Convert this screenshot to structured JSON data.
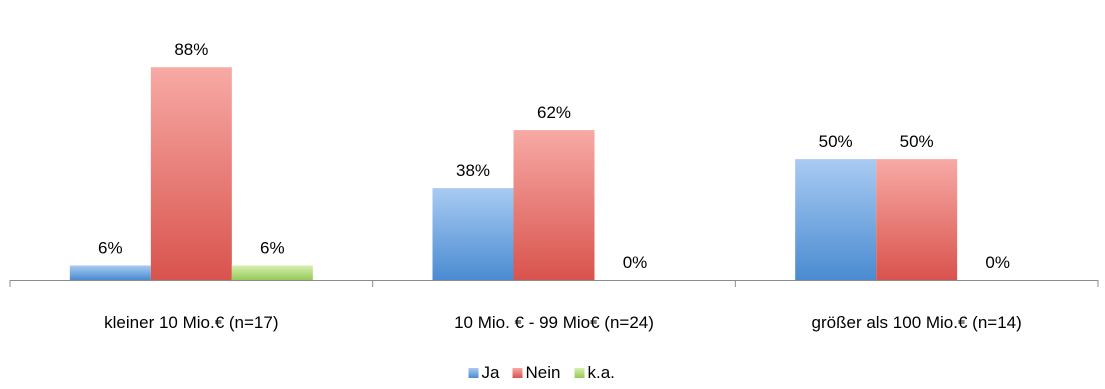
{
  "chart_data": {
    "type": "bar",
    "categories": [
      "kleiner 10 Mio.€ (n=17)",
      "10 Mio. € - 99 Mio€ (n=24)",
      "größer als 100 Mio.€ (n=14)"
    ],
    "series": [
      {
        "name": "Ja",
        "values": [
          6,
          38,
          50
        ],
        "labels": [
          "6%",
          "38%",
          "50%"
        ],
        "color": "#5b9bd5"
      },
      {
        "name": "Nein",
        "values": [
          88,
          62,
          50
        ],
        "labels": [
          "88%",
          "62%",
          "50%"
        ],
        "color": "#e0605a"
      },
      {
        "name": "k.a.",
        "values": [
          6,
          0,
          0
        ],
        "labels": [
          "6%",
          "0%",
          "0%"
        ],
        "color": "#a4d36a"
      }
    ],
    "ylim": [
      0,
      100
    ],
    "title": "",
    "xlabel": "",
    "ylabel": "",
    "legend_position": "bottom",
    "grid": false
  }
}
